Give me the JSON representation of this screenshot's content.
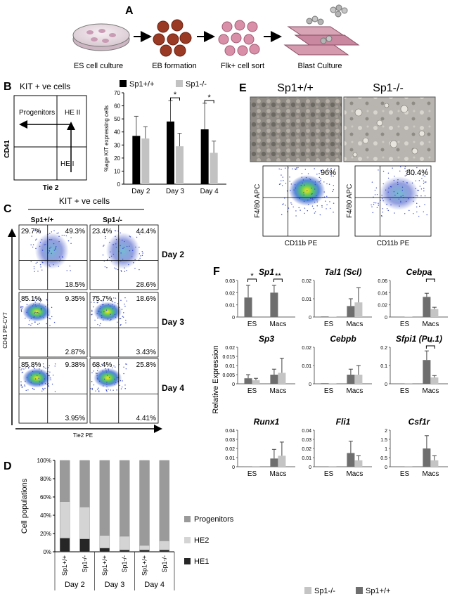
{
  "panels": {
    "A": {
      "letter": "A",
      "steps": [
        "ES cell culture",
        "EB formation",
        "Flk+ cell sort",
        "Blast Culture"
      ]
    },
    "B": {
      "letter": "B",
      "schematic": {
        "title": "KIT + ve cells",
        "ylabel": "CD41",
        "xlabel": "Tie 2",
        "labels": {
          "progenitors": "Progenitors",
          "he2": "HE II",
          "he1": "HE I"
        }
      }
    },
    "C": {
      "letter": "C",
      "header": "KIT + ve cells",
      "col_labels": [
        "Sp1+/+",
        "Sp1-/-"
      ],
      "row_labels": [
        "Day 2",
        "Day 3",
        "Day 4"
      ],
      "ylabel": "CD41 PE-CY7",
      "xlabel": "Tie2 PE",
      "quadrants": [
        {
          "tl": "29.7%",
          "tr": "49.3%",
          "br": "18.5%"
        },
        {
          "tl": "23.4%",
          "tr": "44.4%",
          "br": "28.6%"
        },
        {
          "tl": "85.1%",
          "tr": "9.35%",
          "br": "2.87%"
        },
        {
          "tl": "75.7%",
          "tr": "18.6%",
          "br": "3.43%"
        },
        {
          "tl": "85.8%",
          "tr": "9.38%",
          "br": "3.95%"
        },
        {
          "tl": "68.4%",
          "tr": "25.8%",
          "br": "4.41%"
        }
      ]
    },
    "D": {
      "letter": "D"
    },
    "E": {
      "letter": "E",
      "col_labels": [
        "Sp1+/+",
        "Sp1-/-"
      ],
      "ylabel": "F4/80 APC",
      "xlabel": "CD11b PE",
      "percents": [
        "96%",
        "80.4%"
      ]
    },
    "F": {
      "letter": "F"
    }
  },
  "colors": {
    "wt": "#000000",
    "ko": "#bfbfbf",
    "dark_grey": "#6e6e6e",
    "light_grey": "#c4c4c4"
  },
  "chart_data": [
    {
      "id": "B-bar",
      "type": "bar",
      "ylabel": "%age KIT expressing cells",
      "categories": [
        "Day 2",
        "Day 3",
        "Day 4"
      ],
      "ylim": [
        0,
        70
      ],
      "yticks": [
        "0",
        "10",
        "20",
        "30",
        "40",
        "50",
        "60",
        "70"
      ],
      "legend": [
        "Sp1+/+",
        "Sp1-/-"
      ],
      "series": [
        {
          "name": "Sp1+/+",
          "color": "#000000",
          "values": [
            37,
            48,
            42
          ],
          "errors": [
            15,
            16,
            20
          ]
        },
        {
          "name": "Sp1-/-",
          "color": "#c2c2c2",
          "values": [
            35,
            29,
            24
          ],
          "errors": [
            9,
            10,
            9
          ]
        }
      ],
      "significance": [
        "",
        "*",
        "*"
      ]
    },
    {
      "id": "D-stacked",
      "type": "bar",
      "ylabel": "Cell populations",
      "ylim": [
        0,
        100
      ],
      "yticks": [
        "0%",
        "20%",
        "40%",
        "60%",
        "80%",
        "100%"
      ],
      "categories": [
        "Sp1+/+",
        "Sp1-/-",
        "Sp1+/+",
        "Sp1-/-",
        "Sp1+/+",
        "Sp1-/-"
      ],
      "groups": [
        "Day 2",
        "Day 3",
        "Day 4"
      ],
      "legend": [
        "Progenitors",
        "HE2",
        "HE1"
      ],
      "series": [
        {
          "name": "HE1",
          "color": "#262626",
          "values": [
            15,
            14,
            4,
            2,
            2,
            2
          ]
        },
        {
          "name": "HE2",
          "color": "#d4d4d4",
          "values": [
            40,
            35,
            14,
            15,
            5,
            10
          ]
        },
        {
          "name": "Progenitors",
          "color": "#9a9a9a",
          "values": [
            45,
            51,
            82,
            83,
            93,
            88
          ]
        }
      ]
    },
    {
      "id": "F-expression",
      "type": "bar",
      "ylabel": "Relative Expression",
      "legend": [
        "Sp1-/-",
        "Sp1+/+"
      ],
      "categories": [
        "ES",
        "Macs"
      ],
      "genes": [
        {
          "name": "Sp1",
          "ymax": 0.03,
          "yticks": [
            "0",
            "0.01",
            "0.02",
            "0.03"
          ],
          "wt": [
            0.016,
            0.02
          ],
          "ko": [
            0.0,
            0.0
          ],
          "wt_err": [
            0.01,
            0.006
          ],
          "ko_err": [
            0,
            0
          ],
          "stars": [
            "*",
            "**"
          ]
        },
        {
          "name": "Tal1 (Scl)",
          "ymax": 0.02,
          "yticks": [
            "0",
            "0.01",
            "0.02"
          ],
          "wt": [
            0.0003,
            0.006
          ],
          "ko": [
            0.0002,
            0.008
          ],
          "wt_err": [
            0.0002,
            0.004
          ],
          "ko_err": [
            0.0002,
            0.008
          ],
          "stars": [
            "",
            ""
          ]
        },
        {
          "name": "Cebpa",
          "ymax": 0.06,
          "yticks": [
            "0",
            "0.02",
            "0.04",
            "0.06"
          ],
          "wt": [
            0.0005,
            0.033
          ],
          "ko": [
            0.0005,
            0.013
          ],
          "wt_err": [
            0.0003,
            0.006
          ],
          "ko_err": [
            0.003,
            0.003
          ],
          "stars": [
            "",
            "*"
          ]
        },
        {
          "name": "Sp3",
          "ymax": 0.02,
          "yticks": [
            "0",
            "0.005",
            "0.01",
            "0.015",
            "0.02"
          ],
          "wt": [
            0.003,
            0.005
          ],
          "ko": [
            0.002,
            0.006
          ],
          "wt_err": [
            0.002,
            0.003
          ],
          "ko_err": [
            0.001,
            0.008
          ],
          "stars": [
            "",
            ""
          ]
        },
        {
          "name": "Cebpb",
          "ymax": 0.02,
          "yticks": [
            "0",
            "0.01",
            "0.02"
          ],
          "wt": [
            0.0003,
            0.005
          ],
          "ko": [
            0.0003,
            0.005
          ],
          "wt_err": [
            0.0002,
            0.003
          ],
          "ko_err": [
            0.0002,
            0.005
          ],
          "stars": [
            "",
            ""
          ]
        },
        {
          "name": "Sfpi1 (Pu.1)",
          "ymax": 0.2,
          "yticks": [
            "0",
            "0.1",
            "0.2"
          ],
          "wt": [
            0.002,
            0.13
          ],
          "ko": [
            0.001,
            0.035
          ],
          "wt_err": [
            0.001,
            0.05
          ],
          "ko_err": [
            0.001,
            0.01
          ],
          "stars": [
            "",
            "*"
          ]
        },
        {
          "name": "Runx1",
          "ymax": 0.04,
          "yticks": [
            "0",
            "0.01",
            "0.02",
            "0.03",
            "0.04"
          ],
          "wt": [
            0.0002,
            0.009
          ],
          "ko": [
            0.0002,
            0.012
          ],
          "wt_err": [
            0.0001,
            0.01
          ],
          "ko_err": [
            0.0001,
            0.015
          ],
          "stars": [
            "",
            ""
          ]
        },
        {
          "name": "Fli1",
          "ymax": 0.04,
          "yticks": [
            "0",
            "0.01",
            "0.02",
            "0.03",
            "0.04"
          ],
          "wt": [
            0.0002,
            0.015
          ],
          "ko": [
            0.0002,
            0.007
          ],
          "wt_err": [
            0.0001,
            0.013
          ],
          "ko_err": [
            0.0001,
            0.005
          ],
          "stars": [
            "",
            ""
          ]
        },
        {
          "name": "Csf1r",
          "ymax": 2,
          "yticks": [
            "0",
            "0.5",
            "1",
            "1.5",
            "2"
          ],
          "wt": [
            0.01,
            1.0
          ],
          "ko": [
            0.01,
            0.35
          ],
          "wt_err": [
            0.005,
            0.7
          ],
          "ko_err": [
            0.005,
            0.25
          ],
          "stars": [
            "",
            ""
          ]
        }
      ]
    }
  ]
}
